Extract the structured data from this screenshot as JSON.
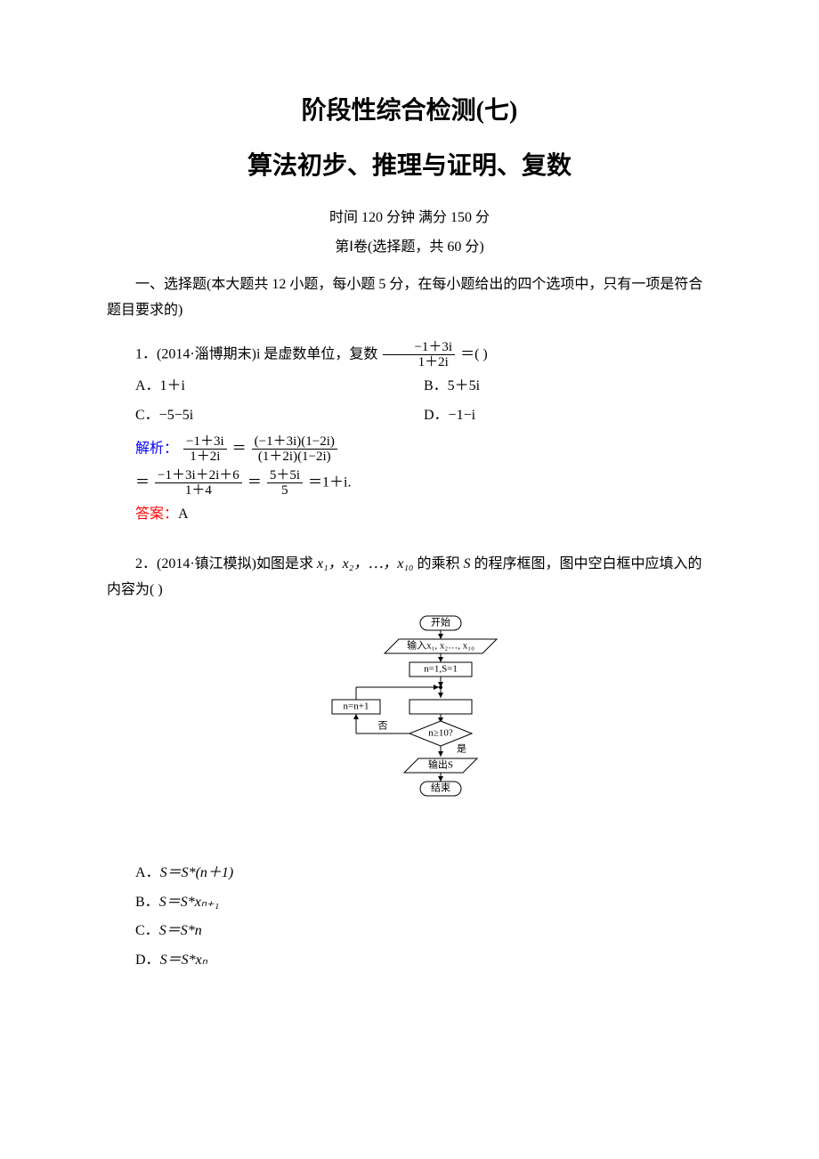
{
  "title_main": "阶段性综合检测(七)",
  "title_sub": "算法初步、推理与证明、复数",
  "meta_time": "时间 120 分钟    满分 150 分",
  "meta_part": "第Ⅰ卷(选择题，共 60 分)",
  "section_intro": "一、选择题(本大题共 12 小题，每小题 5 分，在每小题给出的四个选项中，只有一项是符合题目要求的)",
  "q1": {
    "prefix": "1．(2014·淄博期末)i 是虚数单位，复数",
    "frac_num": "−1＋3i",
    "frac_den": "1＋2i",
    "suffix": "＝(    )",
    "choice_a": "A．1＋i",
    "choice_b": "B．5＋5i",
    "choice_c": "C．−5−5i",
    "choice_d": "D．−1−i",
    "explain_label": "解析：",
    "line1_f1_num": "−1＋3i",
    "line1_f1_den": "1＋2i",
    "line1_eq": "＝",
    "line1_f2_num": "(−1＋3i)(1−2i)",
    "line1_f2_den": "(1＋2i)(1−2i)",
    "line2_eq1": "＝",
    "line2_f1_num": "−1＋3i＋2i＋6",
    "line2_f1_den": "1＋4",
    "line2_eq2": "＝",
    "line2_f2_num": "5＋5i",
    "line2_f2_den": "5",
    "line2_tail": "＝1＋i.",
    "answer_label": "答案：",
    "answer_value": "A"
  },
  "q2": {
    "prefix": "2．(2014·镇江模拟)如图是求 ",
    "vars": "x₁，x₂，⋯，x₁₀",
    "mid": " 的乘积 ",
    "svar": "S",
    "suffix": " 的程序框图，图中空白框中应填入的内容为(    )",
    "choice_a_pre": "A．",
    "choice_a_math": "S＝S*(n＋1)",
    "choice_b_pre": "B．",
    "choice_b_math": "S＝S*xₙ₊₁",
    "choice_c_pre": "C．",
    "choice_c_math": "S＝S*n",
    "choice_d_pre": "D．",
    "choice_d_math": "S＝S*xₙ"
  },
  "flow": {
    "start": "开始",
    "input": "输入x₁, x₂…, x₁₀",
    "init": "n=1,S=1",
    "inc": "n=n+1",
    "cond": "n≥10?",
    "no": "否",
    "yes": "是",
    "output": "输出S",
    "end": "结束",
    "stroke": "#000000",
    "fill": "#ffffff",
    "font_size": 11
  }
}
